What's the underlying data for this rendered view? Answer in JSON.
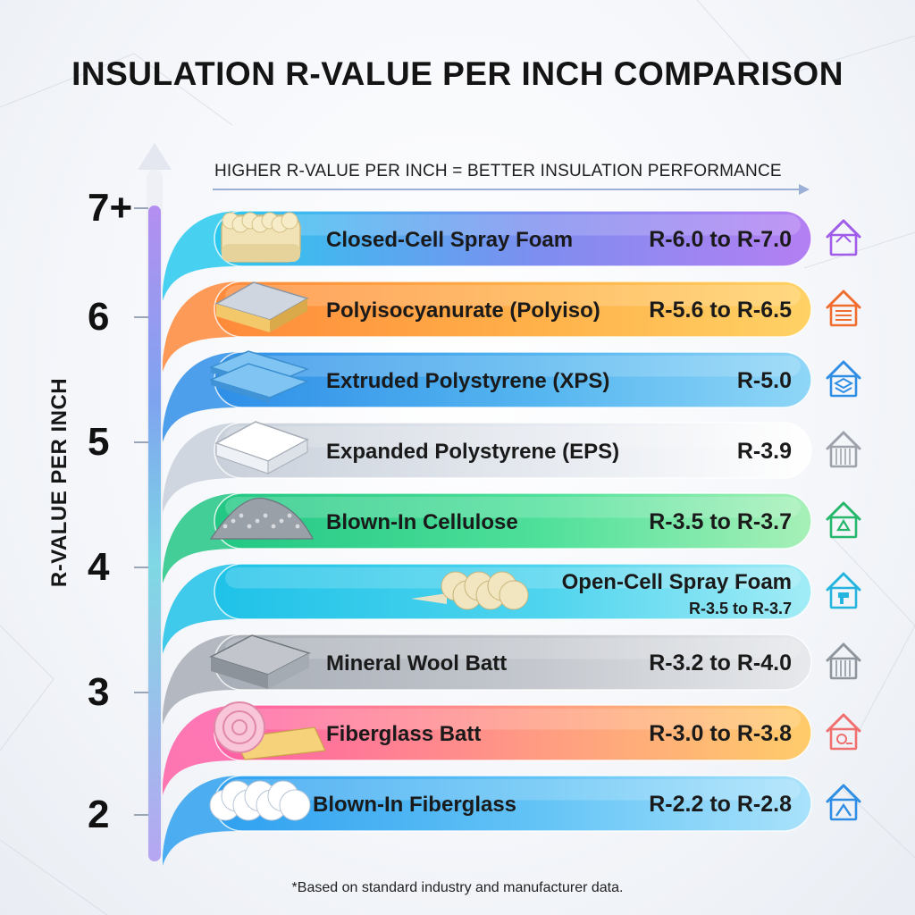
{
  "chart_data": {
    "type": "bar",
    "title": "INSULATION R-VALUE PER INCH COMPARISON",
    "subtitle": "HIGHER R-VALUE PER INCH = BETTER INSULATION PERFORMANCE",
    "ylabel": "R-VALUE PER INCH",
    "ytick_labels": [
      "7+",
      "6",
      "5",
      "4",
      "3",
      "2"
    ],
    "footnote": "*Based on standard industry and manufacturer data.",
    "categories": [
      "Closed-Cell Spray Foam",
      "Polyisocyanurate (Polyiso)",
      "Extruded Polystyrene (XPS)",
      "Expanded Polystyrene (EPS)",
      "Blown-In Cellulose",
      "Open-Cell Spray Foam",
      "Mineral Wool Batt",
      "Fiberglass Batt",
      "Blown-In Fiberglass"
    ],
    "value_labels": [
      "R-6.0 to R-7.0",
      "R-5.6 to R-6.5",
      "R-5.0",
      "R-3.9",
      "R-3.5 to R-3.7",
      "R-3.5 to R-3.7",
      "R-3.2 to R-4.0",
      "R-3.0 to R-3.8",
      "R-2.2 to R-2.8"
    ],
    "ranges": [
      [
        6.0,
        7.0
      ],
      [
        5.6,
        6.5
      ],
      [
        5.0,
        5.0
      ],
      [
        3.9,
        3.9
      ],
      [
        3.5,
        3.7
      ],
      [
        3.5,
        3.7
      ],
      [
        3.2,
        4.0
      ],
      [
        3.0,
        3.8
      ],
      [
        2.2,
        2.8
      ]
    ],
    "ylim": [
      2,
      7
    ],
    "grid": false,
    "legend": "none",
    "colors": [
      [
        "#29c9ee",
        "#7f8df0",
        "#b47ff2"
      ],
      [
        "#ff8a3a",
        "#ffb24a",
        "#ffd266"
      ],
      [
        "#2f8fe8",
        "#56b6f0",
        "#8fd6f7"
      ],
      [
        "#c9d0da",
        "#e6eaf0",
        "#ffffff"
      ],
      [
        "#22c784",
        "#4fe09a",
        "#a7f0b8"
      ],
      [
        "#1fc2e8",
        "#4fd4ee",
        "#a2ecf6"
      ],
      [
        "#a7adb6",
        "#c5c9cf",
        "#e7e9ec"
      ],
      [
        "#ff5fa6",
        "#ff9c82",
        "#ffcc6a"
      ],
      [
        "#2fa0f0",
        "#64c4f6",
        "#a9e2fb"
      ]
    ],
    "icon_colors": [
      "#a05ce8",
      "#f06d2e",
      "#2f8ee3",
      "#9ea3ab",
      "#25b86c",
      "#25b4dd",
      "#8f959d",
      "#f06f6f",
      "#2f8ee3"
    ],
    "icons": [
      "house-icon",
      "house-layers-icon",
      "house-stack-icon",
      "house-wall-icon",
      "house-recycle-icon",
      "house-spray-gun-icon",
      "house-wool-icon",
      "house-roll-icon",
      "house-attic-icon"
    ],
    "materials": [
      "spray-foam-block-icon",
      "polyiso-board-icon",
      "xps-boards-icon",
      "eps-block-icon",
      "cellulose-pile-icon",
      "foam-cloud-icon",
      "mineral-wool-slab-icon",
      "fiberglass-roll-icon",
      "blown-fiberglass-icon"
    ]
  }
}
